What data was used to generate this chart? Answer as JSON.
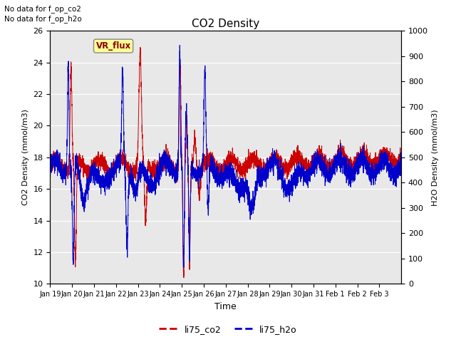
{
  "title": "CO2 Density",
  "xlabel": "Time",
  "ylabel_left": "CO2 Density (mmol/m3)",
  "ylabel_right": "H2O Density (mmol/m3)",
  "ylim_left": [
    10,
    26
  ],
  "ylim_right": [
    0,
    1000
  ],
  "yticks_left": [
    10,
    12,
    14,
    16,
    18,
    20,
    22,
    24,
    26
  ],
  "yticks_right": [
    0,
    100,
    200,
    300,
    400,
    500,
    600,
    700,
    800,
    900,
    1000
  ],
  "xtick_labels": [
    "Jan 19",
    "Jan 20",
    "Jan 21",
    "Jan 22",
    "Jan 23",
    "Jan 24",
    "Jan 25",
    "Jan 26",
    "Jan 27",
    "Jan 28",
    "Jan 29",
    "Jan 30",
    "Jan 31",
    "Feb 1",
    "Feb 2",
    "Feb 3"
  ],
  "top_left_text": "No data for f_op_co2\nNo data for f_op_h2o",
  "vr_flux_label": "VR_flux",
  "legend_entries": [
    "li75_co2",
    "li75_h2o"
  ],
  "line_color_co2": "#cc0000",
  "line_color_h2o": "#0000cc",
  "background_color": "#e8e8e8",
  "figure_bg": "#ffffff",
  "vr_flux_bg": "#ffff99",
  "vr_flux_text_color": "#880000",
  "n_points": 4800,
  "n_days": 16
}
